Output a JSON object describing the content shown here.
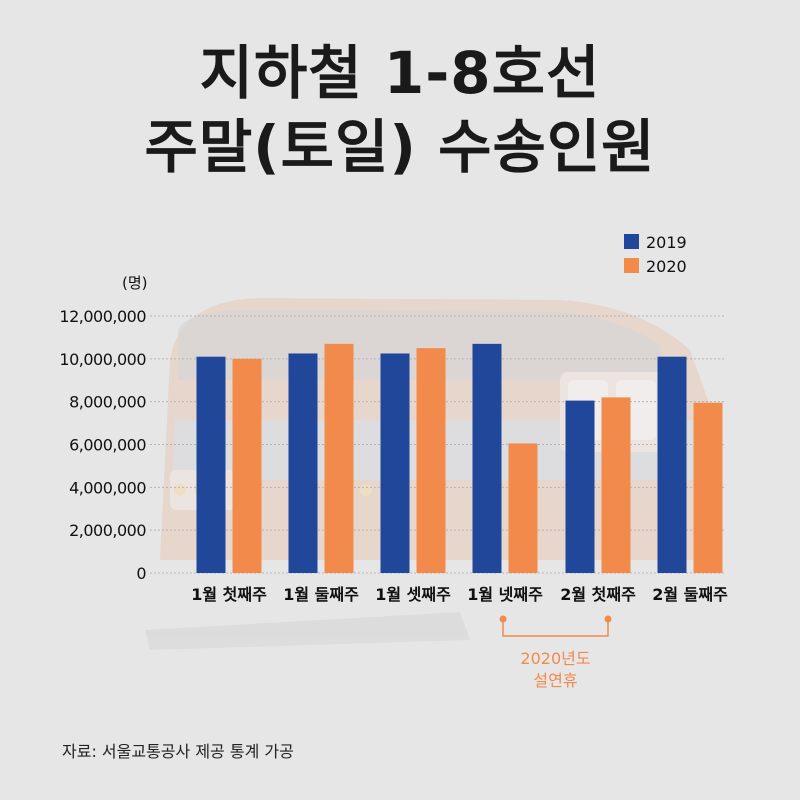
{
  "title": {
    "line1": "지하철 1-8호선",
    "line2": "주말(토일) 수송인원"
  },
  "source": "자료: 서울교통공사 제공 통계 가공",
  "colors": {
    "series_2019": "#21479b",
    "series_2020": "#f28a4c",
    "annotation": "#f28a4c",
    "background": "#e6e6e6"
  },
  "chart_data": {
    "type": "bar",
    "ylabel": "(명)",
    "ylim": [
      0,
      12000000
    ],
    "yticks": [
      0,
      2000000,
      4000000,
      6000000,
      8000000,
      10000000,
      12000000
    ],
    "ytick_labels": [
      "0",
      "2,000,000",
      "4,000,000",
      "6,000,000",
      "8,000,000",
      "10,000,000",
      "12,000,000"
    ],
    "grid": true,
    "legend_position": "top-right",
    "categories": [
      "1월 첫째주",
      "1월 둘째주",
      "1월 셋째주",
      "1월 넷째주",
      "2월 첫째주",
      "2월 둘째주"
    ],
    "series": [
      {
        "name": "2019",
        "values": [
          10100000,
          10250000,
          10250000,
          10700000,
          8050000,
          10100000
        ]
      },
      {
        "name": "2020",
        "values": [
          10000000,
          10700000,
          10500000,
          6050000,
          8200000,
          7950000
        ]
      }
    ],
    "annotation": {
      "text_line1": "2020년도",
      "text_line2": "설연휴",
      "span_categories": [
        3,
        4
      ]
    }
  }
}
